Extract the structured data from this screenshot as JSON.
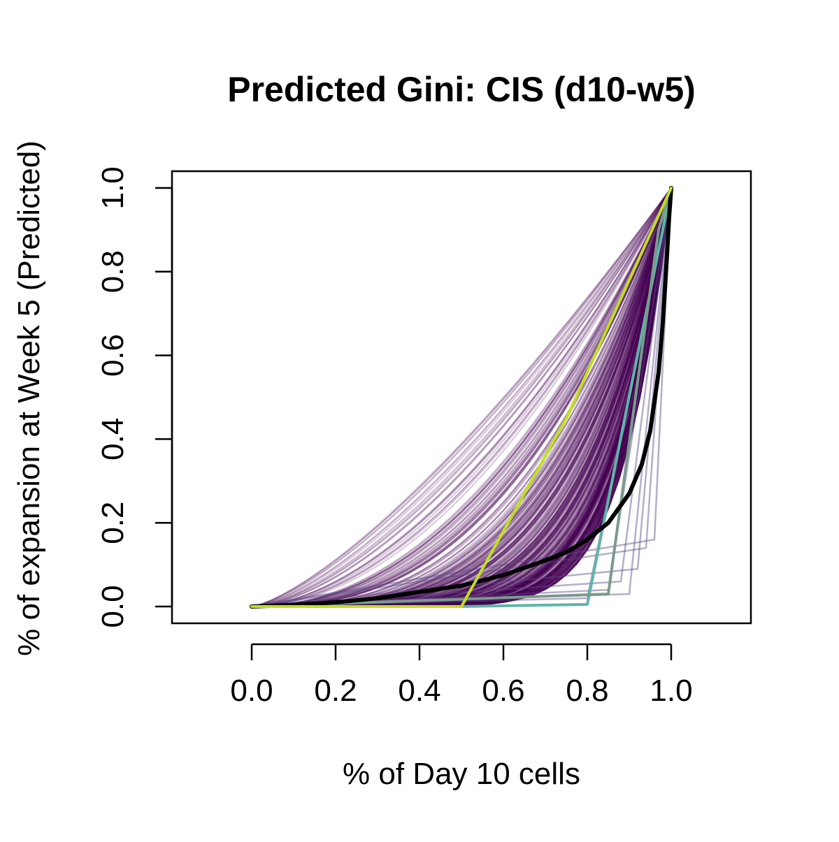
{
  "chart_data": {
    "type": "line",
    "title": "Predicted Gini: CIS (d10-w5)",
    "xlabel": "% of Day 10 cells",
    "ylabel": "% of expansion at Week 5 (Predicted)",
    "xlim": [
      -0.19,
      1.19
    ],
    "ylim": [
      -0.04,
      1.04
    ],
    "xticks": [
      "0.0",
      "0.2",
      "0.4",
      "0.6",
      "0.8",
      "1.0"
    ],
    "yticks": [
      "0.0",
      "0.2",
      "0.4",
      "0.6",
      "0.8",
      "1.0"
    ],
    "grid": false,
    "legend": "none",
    "simulated_bundle": {
      "count": 400,
      "color": "#440154",
      "opacity": 0.22,
      "exponent_range": [
        1.3,
        9.0
      ],
      "step_curves": [
        {
          "x": [
            0,
            0.8,
            1.0
          ],
          "y": [
            0,
            0.02,
            1.0
          ]
        },
        {
          "x": [
            0,
            0.85,
            1.0
          ],
          "y": [
            0,
            0.04,
            1.0
          ]
        },
        {
          "x": [
            0,
            0.88,
            1.0
          ],
          "y": [
            0,
            0.06,
            1.0
          ]
        },
        {
          "x": [
            0,
            0.9,
            1.0
          ],
          "y": [
            0,
            0.03,
            1.0
          ]
        },
        {
          "x": [
            0,
            0.92,
            1.0
          ],
          "y": [
            0,
            0.09,
            1.0
          ]
        },
        {
          "x": [
            0,
            0.94,
            1.0
          ],
          "y": [
            0,
            0.14,
            1.0
          ]
        },
        {
          "x": [
            0,
            0.96,
            1.0
          ],
          "y": [
            0,
            0.16,
            1.0
          ]
        }
      ]
    },
    "series": [
      {
        "color": "#5fb4a8",
        "x": [
          0,
          0.5,
          0.8,
          1.0
        ],
        "y": [
          0,
          0,
          0.005,
          1.0
        ]
      },
      {
        "color": "#7a9a8c",
        "x": [
          0,
          0.85,
          0.97,
          1.0
        ],
        "y": [
          0,
          0.03,
          0.9,
          1.0
        ]
      },
      {
        "color": "#000000",
        "x": [
          0,
          0.1,
          0.2,
          0.3,
          0.4,
          0.5,
          0.6,
          0.7,
          0.75,
          0.8,
          0.85,
          0.9,
          0.93,
          0.95,
          0.97,
          0.98,
          0.99,
          0.995,
          1.0
        ],
        "y": [
          0,
          0.004,
          0.01,
          0.02,
          0.035,
          0.05,
          0.075,
          0.11,
          0.13,
          0.16,
          0.2,
          0.27,
          0.34,
          0.42,
          0.56,
          0.68,
          0.84,
          0.93,
          1.0
        ]
      },
      {
        "color": "#c1df1f",
        "x": [
          0,
          0.5,
          0.75,
          1.0
        ],
        "y": [
          0,
          0,
          0.45,
          1.0
        ]
      }
    ]
  }
}
